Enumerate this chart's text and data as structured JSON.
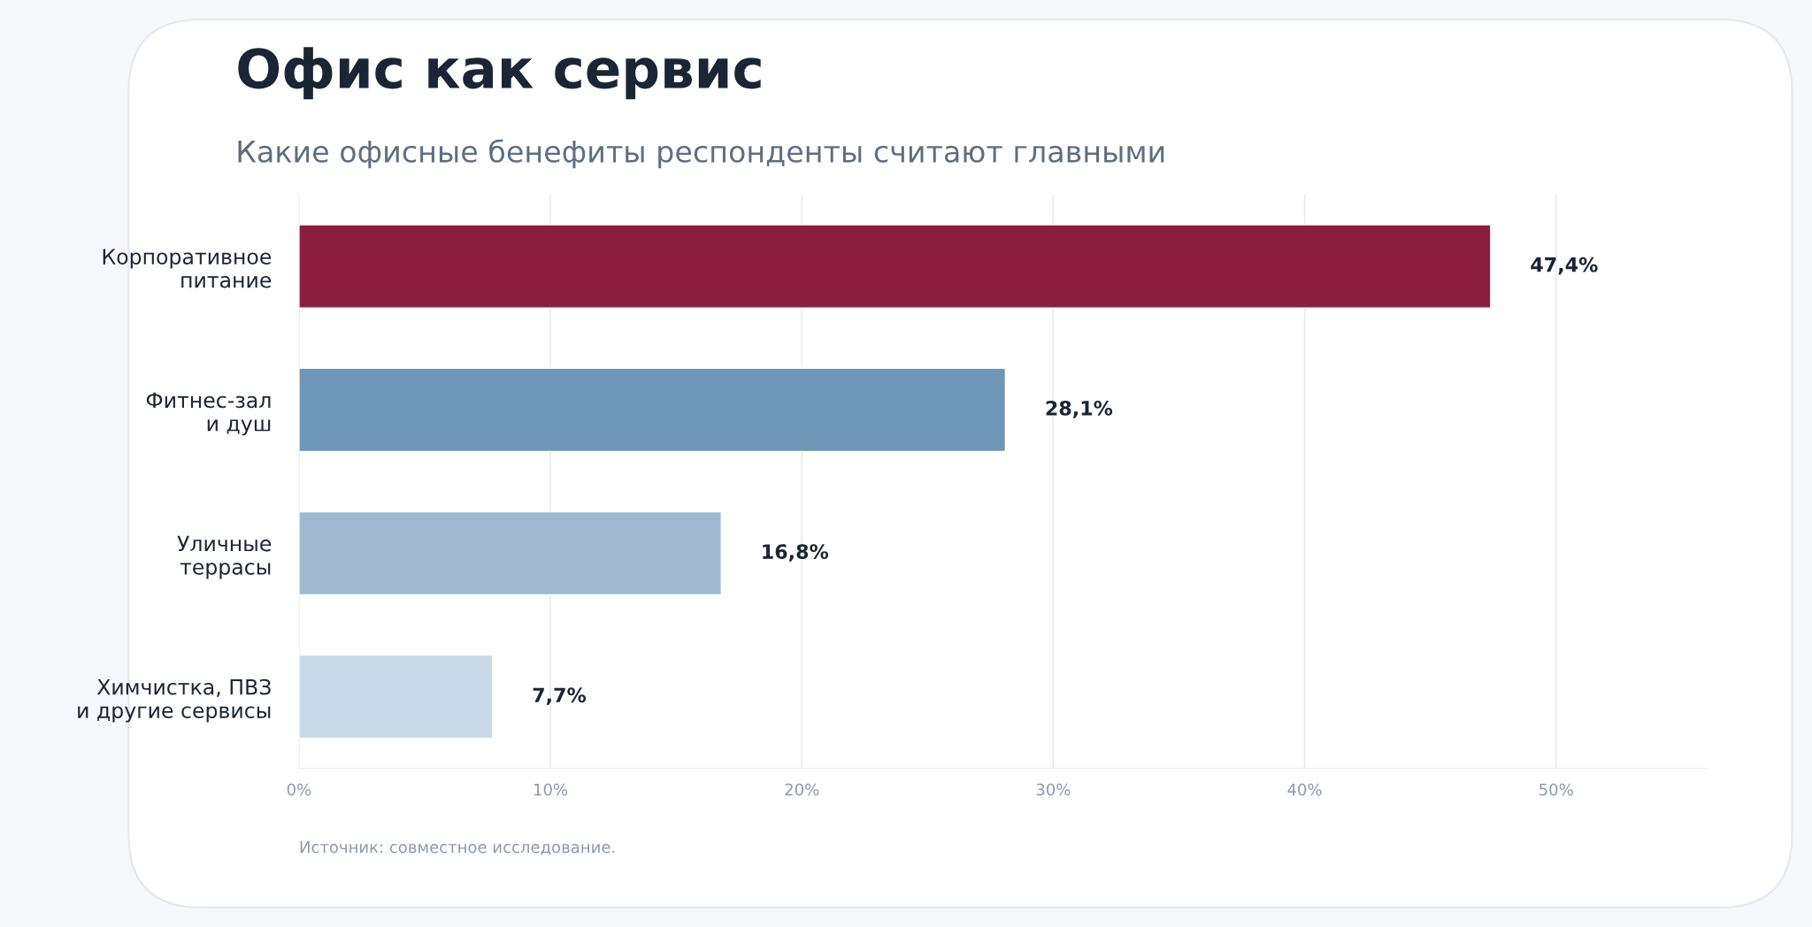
{
  "chart_data": {
    "type": "bar",
    "orientation": "horizontal",
    "title": "Офис как сервис",
    "subtitle": "Какие офисные бенефиты респонденты считают главными",
    "categories": [
      "Корпоративное\nпитание",
      "Фитнес-зал\nи душ",
      "Уличные\nтеррасы",
      "Химчистка, ПВЗ\nи другие сервисы"
    ],
    "values": [
      47.4,
      28.1,
      16.8,
      7.7
    ],
    "colors": [
      "#8b1e3f",
      "#7096b7",
      "#a0b9d1",
      "#c8d9e7"
    ],
    "value_labels": [
      "47,4%",
      "28,1%",
      "16,8%",
      "7,7%"
    ],
    "xlim": [
      0,
      56
    ],
    "xticks": [
      {
        "value": 0,
        "label": "0%"
      },
      {
        "value": 10,
        "label": "10%"
      },
      {
        "value": 20,
        "label": "20%"
      },
      {
        "value": 30,
        "label": "30%"
      },
      {
        "value": 40,
        "label": "40%"
      },
      {
        "value": 50,
        "label": "50%"
      }
    ],
    "grid": "x",
    "annotations": [
      "Источник: совместное исследование."
    ]
  }
}
